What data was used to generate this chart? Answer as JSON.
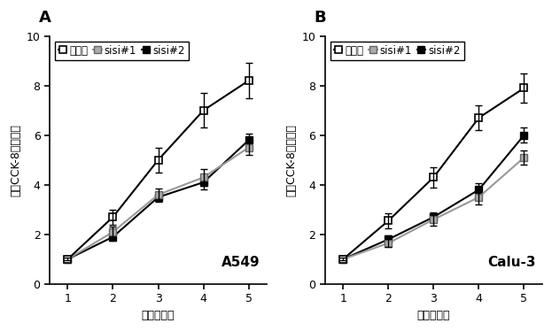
{
  "x": [
    1,
    2,
    3,
    4,
    5
  ],
  "A549": {
    "control": {
      "y": [
        1.0,
        2.7,
        5.0,
        7.0,
        8.2
      ],
      "yerr": [
        0.05,
        0.3,
        0.5,
        0.7,
        0.7
      ]
    },
    "sisi1": {
      "y": [
        1.0,
        2.1,
        3.6,
        4.3,
        5.5
      ],
      "yerr": [
        0.05,
        0.2,
        0.25,
        0.35,
        0.3
      ]
    },
    "sisi2": {
      "y": [
        1.0,
        1.9,
        3.5,
        4.1,
        5.8
      ],
      "yerr": [
        0.05,
        0.15,
        0.2,
        0.3,
        0.25
      ]
    }
  },
  "Calu3": {
    "control": {
      "y": [
        1.0,
        2.55,
        4.3,
        6.7,
        7.9
      ],
      "yerr": [
        0.05,
        0.3,
        0.4,
        0.5,
        0.6
      ]
    },
    "sisi1": {
      "y": [
        1.0,
        1.65,
        2.6,
        3.5,
        5.1
      ],
      "yerr": [
        0.05,
        0.15,
        0.25,
        0.3,
        0.3
      ]
    },
    "sisi2": {
      "y": [
        1.0,
        1.8,
        2.7,
        3.8,
        6.0
      ],
      "yerr": [
        0.05,
        0.15,
        0.2,
        0.25,
        0.3
      ]
    }
  },
  "control_color": "#ffffff",
  "control_edge": "#000000",
  "sisi1_color": "#aaaaaa",
  "sisi1_edge": "#888888",
  "sisi2_color": "#000000",
  "sisi2_edge": "#000000",
  "legend_label_ctrl": "对照组",
  "legend_label_s1": "sisi#1",
  "legend_label_s2": "sisi#2",
  "ylabel": "相对CCK-8的吸光度",
  "xlabel": "时间（日）",
  "ylim": [
    0,
    10
  ],
  "yticks": [
    0,
    2,
    4,
    6,
    8,
    10
  ],
  "xticks": [
    1,
    2,
    3,
    4,
    5
  ],
  "title_A": "A549",
  "title_B": "Calu-3",
  "panel_A": "A",
  "panel_B": "B",
  "linewidth": 1.5,
  "markersize": 6,
  "capsize": 3
}
